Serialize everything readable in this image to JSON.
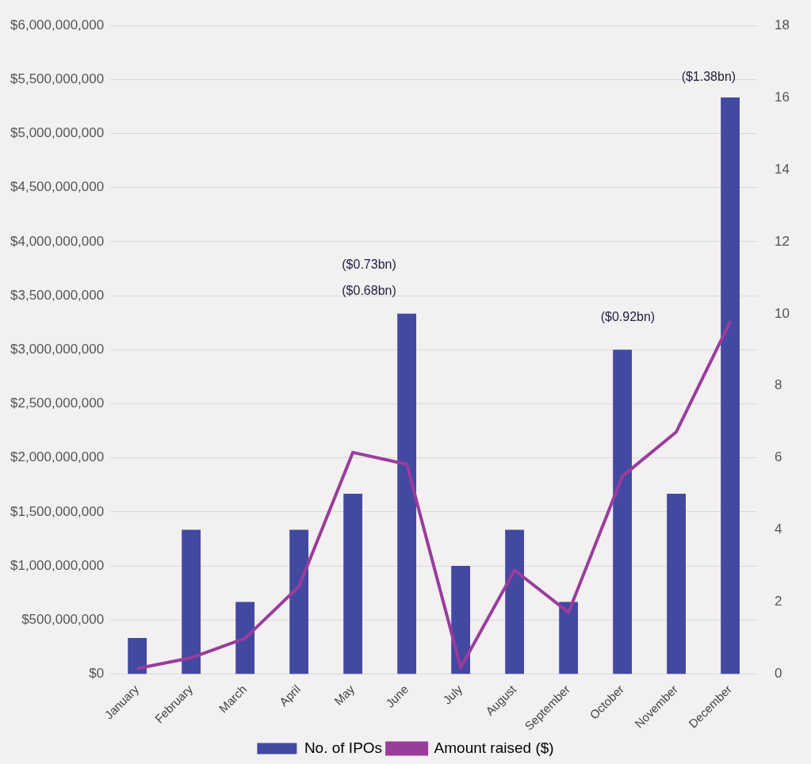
{
  "chart_data": {
    "type": "bar",
    "categories": [
      "January",
      "February",
      "March",
      "April",
      "May",
      "June",
      "July",
      "August",
      "September",
      "October",
      "November",
      "December"
    ],
    "series": [
      {
        "name": "No. of IPOs",
        "axis": "y2",
        "color": "#4349a0",
        "values": [
          1,
          4,
          2,
          4,
          5,
          10,
          3,
          4,
          2,
          9,
          5,
          16
        ]
      },
      {
        "name": "Amount raised ($)",
        "type": "line",
        "axis": "y",
        "color": "#993d9c",
        "marker": "none",
        "values": [
          50000000,
          150000000,
          330000000,
          810000000,
          2050000000,
          1940000000,
          60000000,
          960000000,
          570000000,
          1830000000,
          2240000000,
          3260000000
        ]
      }
    ],
    "ylim": [
      0,
      6000000000
    ],
    "yticks": [
      {
        "value": 0,
        "label": "$0"
      },
      {
        "value": 500000000,
        "label": "$500,000,000"
      },
      {
        "value": 1000000000,
        "label": "$1,000,000,000"
      },
      {
        "value": 1500000000,
        "label": "$1,500,000,000"
      },
      {
        "value": 2000000000,
        "label": "$2,000,000,000"
      },
      {
        "value": 2500000000,
        "label": "$2,500,000,000"
      },
      {
        "value": 3000000000,
        "label": "$3,000,000,000"
      },
      {
        "value": 3500000000,
        "label": "$3,500,000,000"
      },
      {
        "value": 4000000000,
        "label": "$4,000,000,000"
      },
      {
        "value": 4500000000,
        "label": "$4,500,000,000"
      },
      {
        "value": 5000000000,
        "label": "$5,000,000,000"
      },
      {
        "value": 5500000000,
        "label": "$5,500,000,000"
      },
      {
        "value": 6000000000,
        "label": "$6,000,000,000"
      }
    ],
    "y2lim": [
      0,
      18
    ],
    "y2ticks": [
      0,
      2,
      4,
      6,
      8,
      10,
      12,
      14,
      16,
      18
    ],
    "grid": "y",
    "legend": "bottom",
    "annotations": [
      "($0.73bn)",
      "($0.68bn)",
      "($0.92bn)",
      "($1.38bn)"
    ]
  }
}
